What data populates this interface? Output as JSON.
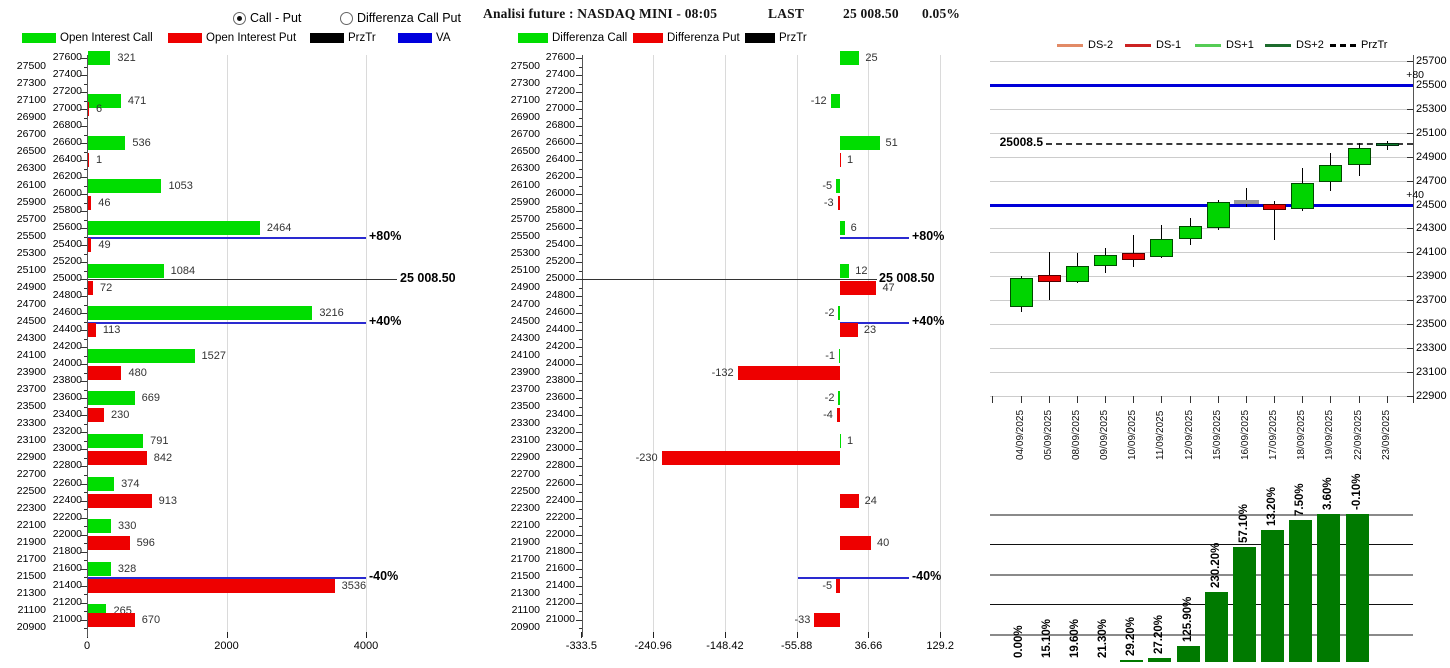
{
  "controls": {
    "radios": [
      {
        "label": "Call - Put",
        "selected": true
      },
      {
        "label": "Differenza Call Put",
        "selected": false
      }
    ]
  },
  "header": {
    "title": "Analisi future : NASDAQ MINI - 08:05",
    "last_label": "LAST",
    "last_value": "25 008.50",
    "change_pct": "0.05%"
  },
  "legends": {
    "left": [
      {
        "label": "Open Interest Call",
        "color": "#00dd00"
      },
      {
        "label": "Open Interest Put",
        "color": "#ee0000"
      },
      {
        "label": "PrzTr",
        "color": "#000000"
      },
      {
        "label": "VA",
        "color": "#0000dd"
      }
    ],
    "middle": [
      {
        "label": "Differenza Call",
        "color": "#00dd00"
      },
      {
        "label": "Differenza Put",
        "color": "#ee0000"
      },
      {
        "label": "PrzTr",
        "color": "#000000"
      }
    ],
    "right": [
      {
        "label": "DS-2",
        "color": "#e28a66",
        "dashed": false
      },
      {
        "label": "DS-1",
        "color": "#cc2222",
        "dashed": false
      },
      {
        "label": "DS+1",
        "color": "#55cc55",
        "dashed": false
      },
      {
        "label": "DS+2",
        "color": "#1d6b2d",
        "dashed": false
      },
      {
        "label": "PrzTr",
        "color": "#000000",
        "dashed": true
      }
    ]
  },
  "chart_data": [
    {
      "type": "bar",
      "name": "open-interest-by-strike",
      "orientation": "horizontal",
      "y_range": [
        20900,
        27600
      ],
      "y_step": 100,
      "x_ticks": [
        0,
        2000,
        4000
      ],
      "series": [
        {
          "name": "Open Interest Call",
          "color": "#00dd00",
          "points": [
            [
              27600,
              321
            ],
            [
              27100,
              471
            ],
            [
              26600,
              536
            ],
            [
              26100,
              1053
            ],
            [
              25600,
              2464
            ],
            [
              25100,
              1084
            ],
            [
              24600,
              3216
            ],
            [
              24100,
              1527
            ],
            [
              23600,
              669
            ],
            [
              23100,
              791
            ],
            [
              22600,
              374
            ],
            [
              22100,
              330
            ],
            [
              21600,
              328
            ],
            [
              21100,
              265
            ]
          ]
        },
        {
          "name": "Open Interest Put",
          "color": "#ee0000",
          "points": [
            [
              27000,
              6
            ],
            [
              26400,
              1
            ],
            [
              25900,
              46
            ],
            [
              25400,
              49
            ],
            [
              24900,
              72
            ],
            [
              24400,
              113
            ],
            [
              23900,
              480
            ],
            [
              23400,
              230
            ],
            [
              22900,
              842
            ],
            [
              22400,
              913
            ],
            [
              21900,
              596
            ],
            [
              21400,
              3536
            ],
            [
              21000,
              670
            ]
          ]
        }
      ],
      "level_lines": [
        {
          "name": "PrzTr",
          "price": 25008.5,
          "label": "25 008.50",
          "color": "#333333"
        },
        {
          "name": "VA+80",
          "price": 25500,
          "label": "+80%",
          "color": "#2a2ad0"
        },
        {
          "name": "VA+40",
          "price": 24500,
          "label": "+40%",
          "color": "#2a2ad0"
        },
        {
          "name": "VA-40",
          "price": 21500,
          "label": "-40%",
          "color": "#2a2ad0"
        }
      ]
    },
    {
      "type": "bar",
      "name": "open-interest-difference-by-strike",
      "orientation": "horizontal",
      "y_range": [
        20900,
        27600
      ],
      "y_step": 100,
      "x_ticks": [
        -333.5,
        -240.96,
        -148.42,
        -55.88,
        36.66,
        129.2
      ],
      "series": [
        {
          "name": "Differenza Call",
          "color": "#00dd00",
          "points": [
            [
              27600,
              25
            ],
            [
              27100,
              -12
            ],
            [
              26600,
              51
            ],
            [
              26100,
              -5
            ],
            [
              25600,
              6
            ],
            [
              25100,
              12
            ],
            [
              24600,
              -2
            ],
            [
              24100,
              -1
            ],
            [
              23600,
              -2
            ],
            [
              23100,
              1
            ]
          ]
        },
        {
          "name": "Differenza Put",
          "color": "#ee0000",
          "points": [
            [
              26400,
              1
            ],
            [
              25900,
              -3
            ],
            [
              24900,
              47
            ],
            [
              24400,
              23
            ],
            [
              23900,
              -132
            ],
            [
              23400,
              -4
            ],
            [
              22900,
              -230
            ],
            [
              22400,
              24
            ],
            [
              21900,
              40
            ],
            [
              21400,
              -5
            ],
            [
              21000,
              -33
            ]
          ]
        }
      ],
      "level_lines": [
        {
          "name": "PrzTr",
          "price": 25008.5,
          "label": "25 008.50",
          "color": "#333333"
        },
        {
          "name": "VA+80",
          "price": 25500,
          "label": "+80%",
          "color": "#2a2ad0"
        },
        {
          "name": "VA+40",
          "price": 24500,
          "label": "+40%",
          "color": "#2a2ad0"
        },
        {
          "name": "VA-40",
          "price": 21500,
          "label": "-40%",
          "color": "#2a2ad0"
        }
      ]
    },
    {
      "type": "candlestick",
      "name": "futures-daily",
      "y_ticks": [
        25700,
        25500,
        25300,
        25100,
        24900,
        24700,
        24500,
        24300,
        24100,
        23900,
        23700,
        23500,
        23300,
        23100,
        22900
      ],
      "colors": {
        "up": "#00d400",
        "down": "#ee0000",
        "doji": "#9a9a9a",
        "dark": "#0b7a2b"
      },
      "level_lines": [
        {
          "name": "VA+80",
          "price": 25500,
          "label": "+80",
          "color": "#0000d8",
          "style": "solid"
        },
        {
          "name": "VA+40",
          "price": 24500,
          "label": "+40",
          "color": "#0000d8",
          "style": "solid"
        },
        {
          "name": "PrzTr",
          "price": 25008.5,
          "label": "25008.5",
          "color": "#333333",
          "style": "dashed"
        }
      ],
      "candles": [
        {
          "date": "04/09/2025",
          "open": 23645,
          "high": 23905,
          "low": 23600,
          "close": 23885,
          "type": "up"
        },
        {
          "date": "05/09/2025",
          "open": 23910,
          "high": 24105,
          "low": 23700,
          "close": 23855,
          "type": "down"
        },
        {
          "date": "08/09/2025",
          "open": 23855,
          "high": 24095,
          "low": 23845,
          "close": 23985,
          "type": "up"
        },
        {
          "date": "09/09/2025",
          "open": 23985,
          "high": 24135,
          "low": 23925,
          "close": 24075,
          "type": "up"
        },
        {
          "date": "10/09/2025",
          "open": 24095,
          "high": 24245,
          "low": 23975,
          "close": 24040,
          "type": "down"
        },
        {
          "date": "11/09/2025",
          "open": 24060,
          "high": 24330,
          "low": 24055,
          "close": 24210,
          "type": "up"
        },
        {
          "date": "12/09/2025",
          "open": 24210,
          "high": 24390,
          "low": 24160,
          "close": 24325,
          "type": "up"
        },
        {
          "date": "15/09/2025",
          "open": 24305,
          "high": 24540,
          "low": 24290,
          "close": 24520,
          "type": "up"
        },
        {
          "date": "16/09/2025",
          "open": 24513,
          "high": 24635,
          "low": 24480,
          "close": 24518,
          "type": "doji"
        },
        {
          "date": "17/09/2025",
          "open": 24505,
          "high": 24530,
          "low": 24205,
          "close": 24455,
          "type": "down"
        },
        {
          "date": "18/09/2025",
          "open": 24460,
          "high": 24805,
          "low": 24450,
          "close": 24680,
          "type": "up"
        },
        {
          "date": "19/09/2025",
          "open": 24690,
          "high": 24930,
          "low": 24610,
          "close": 24830,
          "type": "up"
        },
        {
          "date": "22/09/2025",
          "open": 24830,
          "high": 25015,
          "low": 24735,
          "close": 24975,
          "type": "up"
        },
        {
          "date": "23/09/2025",
          "open": 24990,
          "high": 25030,
          "low": 24960,
          "close": 25015,
          "type": "dark"
        }
      ],
      "pct_bars": {
        "color": "#007a00",
        "labels": [
          "0.00%",
          "15.10%",
          "19.60%",
          "21.30%",
          "29.20%",
          "27.20%",
          "125.90%",
          "230.20%",
          "57.10%",
          "13.20%",
          "7.50%",
          "3.60%",
          "-0.10%"
        ],
        "height_frac": [
          0,
          0,
          0,
          0,
          0.015,
          0.03,
          0.11,
          0.47,
          0.78,
          0.89,
          0.96,
          1,
          1
        ]
      }
    }
  ]
}
